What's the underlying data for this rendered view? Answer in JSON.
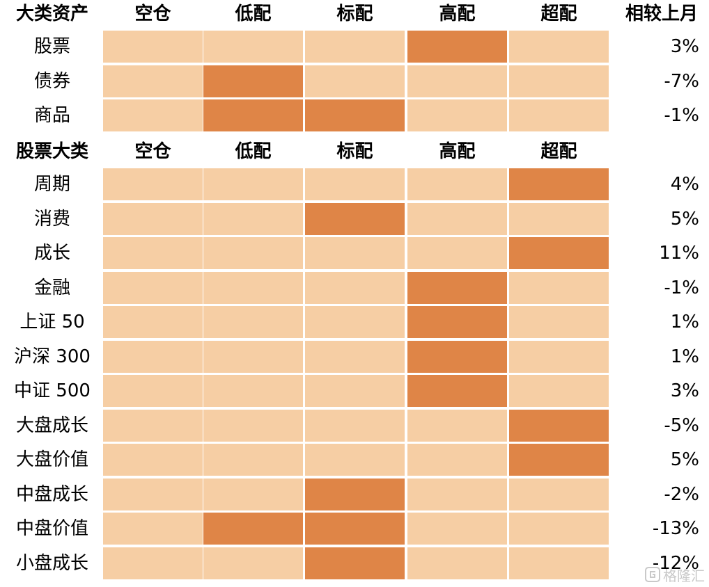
{
  "colors": {
    "light": "#F6CEA4",
    "dark": "#DF8547"
  },
  "watermark": {
    "text": "格隆汇",
    "icon": "gelonghui-logo-icon"
  },
  "chart_data": {
    "type": "heatmap",
    "levels": [
      "空仓",
      "低配",
      "标配",
      "高配",
      "超配"
    ],
    "sections": [
      {
        "header": "大类资产",
        "change_header": "相较上月",
        "rows": [
          {
            "label": "股票",
            "highlighted": [
              "高配"
            ],
            "change": "3%"
          },
          {
            "label": "债券",
            "highlighted": [
              "低配"
            ],
            "change": "-7%"
          },
          {
            "label": "商品",
            "highlighted": [
              "低配",
              "标配"
            ],
            "change": "-1%"
          }
        ]
      },
      {
        "header": "股票大类",
        "change_header": "",
        "rows": [
          {
            "label": "周期",
            "highlighted": [
              "超配"
            ],
            "change": "4%"
          },
          {
            "label": "消费",
            "highlighted": [
              "标配"
            ],
            "change": "5%"
          },
          {
            "label": "成长",
            "highlighted": [
              "超配"
            ],
            "change": "11%"
          },
          {
            "label": "金融",
            "highlighted": [
              "高配"
            ],
            "change": "-1%"
          },
          {
            "label": "上证 50",
            "highlighted": [
              "高配"
            ],
            "change": "1%"
          },
          {
            "label": "沪深 300",
            "highlighted": [
              "高配"
            ],
            "change": "1%"
          },
          {
            "label": "中证 500",
            "highlighted": [
              "高配"
            ],
            "change": "3%"
          },
          {
            "label": "大盘成长",
            "highlighted": [
              "超配"
            ],
            "change": "-5%"
          },
          {
            "label": "大盘价值",
            "highlighted": [
              "超配"
            ],
            "change": "5%"
          },
          {
            "label": "中盘成长",
            "highlighted": [
              "标配"
            ],
            "change": "-2%"
          },
          {
            "label": "中盘价值",
            "highlighted": [
              "低配",
              "标配"
            ],
            "change": "-13%"
          },
          {
            "label": "小盘成长",
            "highlighted": [
              "标配"
            ],
            "change": "-12%"
          }
        ]
      }
    ]
  }
}
